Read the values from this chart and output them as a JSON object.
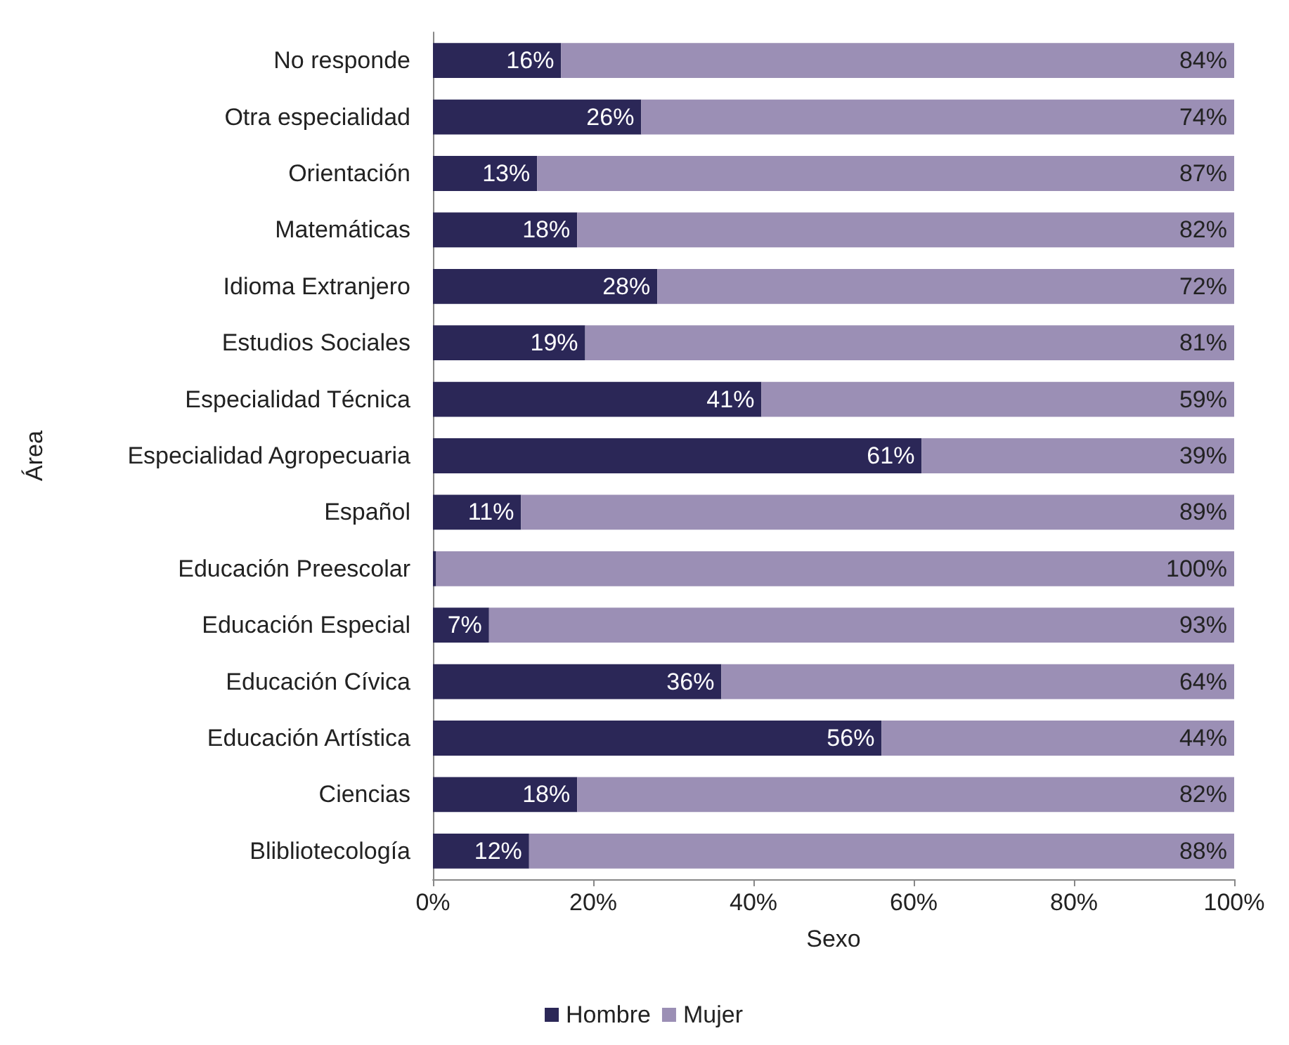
{
  "chart_data": {
    "type": "bar",
    "orientation": "horizontal",
    "stacked": true,
    "categories": [
      "No responde",
      "Otra especialidad",
      "Orientación",
      "Matemáticas",
      "Idioma Extranjero",
      "Estudios Sociales",
      "Especialidad Técnica",
      "Especialidad Agropecuaria",
      "Español",
      "Educación Preescolar",
      "Educación Especial",
      "Educación Cívica",
      "Educación Artística",
      "Ciencias",
      "Blibliotecología"
    ],
    "series": [
      {
        "name": "Hombre",
        "color": "#2b2757",
        "values": [
          16,
          26,
          13,
          18,
          28,
          19,
          41,
          61,
          11,
          0.4,
          7,
          36,
          56,
          18,
          12
        ],
        "value_labels": [
          "16%",
          "26%",
          "13%",
          "18%",
          "28%",
          "19%",
          "41%",
          "61%",
          "11%",
          null,
          "7%",
          "36%",
          "56%",
          "18%",
          "12%"
        ]
      },
      {
        "name": "Mujer",
        "color": "#9b8fb5",
        "values": [
          84,
          74,
          87,
          82,
          72,
          81,
          59,
          39,
          89,
          99.6,
          93,
          64,
          44,
          82,
          88
        ],
        "value_labels": [
          "84%",
          "74%",
          "87%",
          "82%",
          "72%",
          "81%",
          "59%",
          "39%",
          "89%",
          "100%",
          "93%",
          "64%",
          "44%",
          "82%",
          "88%"
        ]
      }
    ],
    "xlim": [
      0,
      100
    ],
    "xticks": [
      {
        "value": 0,
        "label": "0%"
      },
      {
        "value": 20,
        "label": "20%"
      },
      {
        "value": 40,
        "label": "40%"
      },
      {
        "value": 60,
        "label": "60%"
      },
      {
        "value": 80,
        "label": "80%"
      },
      {
        "value": 100,
        "label": "100%"
      }
    ],
    "xlabel": "Sexo",
    "ylabel": "Área",
    "legend": "bottom",
    "grid": false
  }
}
